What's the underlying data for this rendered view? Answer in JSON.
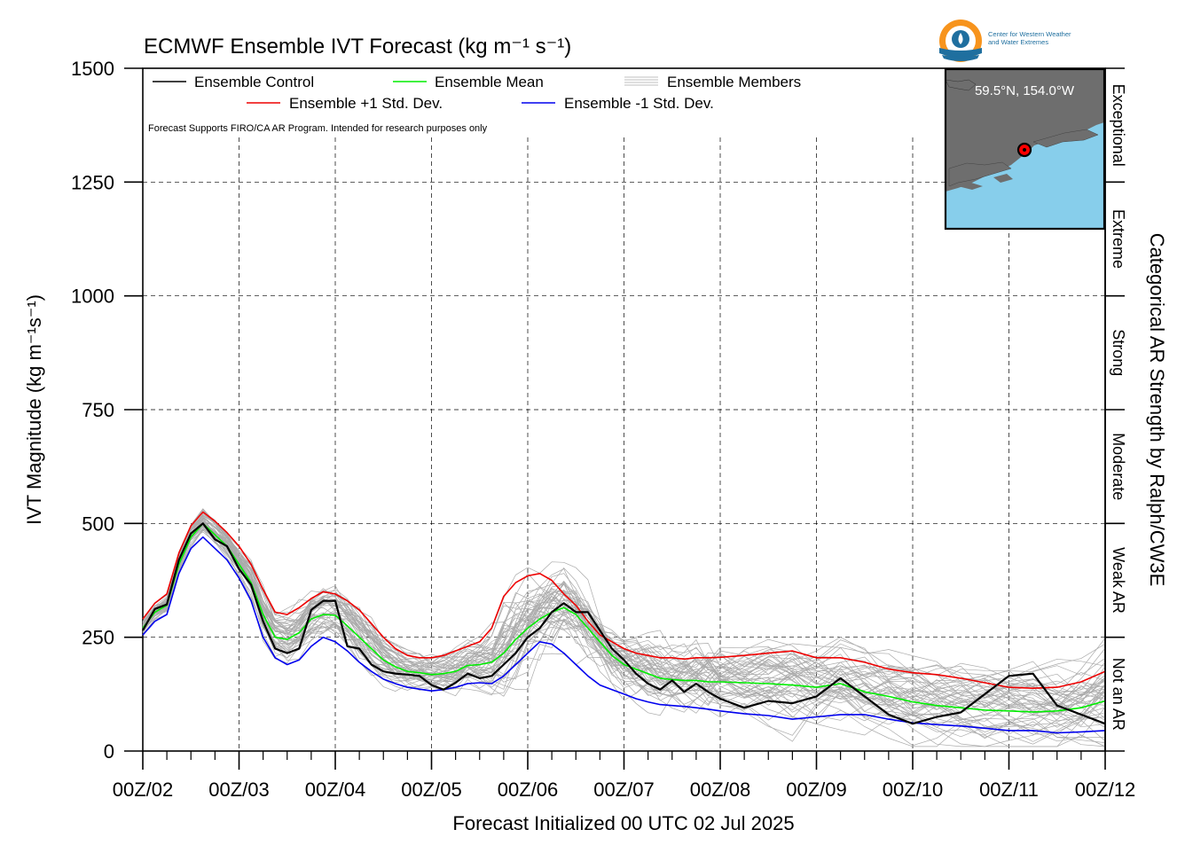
{
  "chart_data": {
    "type": "line",
    "title": "ECMWF Ensemble IVT Forecast (kg m⁻¹ s⁻¹)",
    "xlabel": "Forecast Initialized 00 UTC 02 Jul 2025",
    "ylabel": "IVT Magnitude (kg m⁻¹s⁻¹)",
    "right_label": "Categorical AR Strength by Ralph/CW3E",
    "note": "Forecast Supports FIRO/CA AR Program. Intended for research purposes only",
    "ylim": [
      0,
      1500
    ],
    "xlim": [
      0,
      240
    ],
    "x_units": "forecast hours",
    "y_ticks": [
      0,
      250,
      500,
      750,
      1000,
      1250,
      1500
    ],
    "x_ticks": [
      0,
      24,
      48,
      72,
      96,
      120,
      144,
      168,
      192,
      216,
      240
    ],
    "x_tick_labels": [
      "00Z/02",
      "00Z/03",
      "00Z/04",
      "00Z/05",
      "00Z/06",
      "00Z/07",
      "00Z/08",
      "00Z/09",
      "00Z/10",
      "00Z/11",
      "00Z/12"
    ],
    "grid": true,
    "legend_placement": "top-left",
    "categories": [
      {
        "label": "Not an AR",
        "range": [
          0,
          250
        ]
      },
      {
        "label": "Weak AR",
        "range": [
          250,
          500
        ]
      },
      {
        "label": "Moderate",
        "range": [
          500,
          750
        ]
      },
      {
        "label": "Strong",
        "range": [
          750,
          1000
        ]
      },
      {
        "label": "Extreme",
        "range": [
          1000,
          1250
        ]
      },
      {
        "label": "Exceptional",
        "range": [
          1250,
          1500
        ]
      }
    ],
    "x": [
      0,
      3,
      6,
      9,
      12,
      15,
      18,
      21,
      24,
      27,
      30,
      33,
      36,
      39,
      42,
      45,
      48,
      51,
      54,
      57,
      60,
      63,
      66,
      69,
      72,
      75,
      78,
      81,
      84,
      87,
      90,
      93,
      96,
      99,
      102,
      105,
      108,
      111,
      114,
      117,
      120,
      123,
      126,
      129,
      132,
      135,
      138,
      141,
      144,
      150,
      156,
      162,
      168,
      174,
      180,
      186,
      192,
      198,
      204,
      210,
      216,
      222,
      228,
      234,
      240
    ],
    "series": [
      {
        "name": "Ensemble Control",
        "color": "#000000",
        "values": [
          265,
          312,
          322,
          420,
          478,
          500,
          465,
          450,
          400,
          365,
          285,
          225,
          215,
          225,
          310,
          330,
          330,
          230,
          225,
          190,
          175,
          170,
          168,
          165,
          145,
          135,
          150,
          170,
          160,
          165,
          190,
          215,
          250,
          270,
          305,
          325,
          305,
          305,
          265,
          225,
          200,
          170,
          148,
          135,
          155,
          130,
          148,
          130,
          115,
          95,
          110,
          105,
          120,
          160,
          120,
          80,
          60,
          75,
          85,
          125,
          165,
          170,
          100,
          80,
          60
        ]
      },
      {
        "name": "Ensemble Mean",
        "color": "#00ee00",
        "values": [
          270,
          305,
          320,
          410,
          470,
          500,
          475,
          450,
          410,
          370,
          300,
          250,
          245,
          260,
          290,
          300,
          298,
          275,
          250,
          225,
          200,
          185,
          175,
          172,
          168,
          170,
          175,
          188,
          190,
          195,
          215,
          245,
          270,
          290,
          305,
          315,
          300,
          270,
          240,
          210,
          190,
          180,
          170,
          160,
          157,
          155,
          155,
          152,
          152,
          150,
          148,
          145,
          140,
          148,
          130,
          120,
          108,
          100,
          95,
          90,
          88,
          86,
          88,
          95,
          110
        ]
      },
      {
        "name": "Ensemble +1 Std. Dev.",
        "color": "#ee0000",
        "values": [
          290,
          325,
          345,
          435,
          495,
          525,
          505,
          480,
          450,
          410,
          355,
          305,
          300,
          315,
          335,
          350,
          345,
          330,
          310,
          280,
          250,
          225,
          210,
          205,
          205,
          210,
          220,
          230,
          240,
          270,
          340,
          370,
          385,
          390,
          375,
          345,
          320,
          285,
          255,
          240,
          225,
          215,
          210,
          205,
          205,
          202,
          205,
          205,
          206,
          210,
          215,
          220,
          205,
          205,
          195,
          180,
          172,
          168,
          160,
          150,
          140,
          138,
          140,
          152,
          175
        ]
      },
      {
        "name": "Ensemble -1 Std. Dev.",
        "color": "#0000ee",
        "values": [
          255,
          285,
          300,
          390,
          445,
          470,
          445,
          420,
          380,
          330,
          250,
          205,
          190,
          200,
          230,
          250,
          240,
          220,
          195,
          175,
          158,
          148,
          140,
          136,
          132,
          135,
          140,
          148,
          150,
          148,
          165,
          190,
          215,
          240,
          235,
          215,
          190,
          165,
          145,
          135,
          125,
          115,
          108,
          102,
          100,
          98,
          95,
          92,
          88,
          82,
          78,
          70,
          75,
          80,
          80,
          70,
          62,
          58,
          55,
          50,
          45,
          45,
          40,
          42,
          45
        ]
      }
    ],
    "ensemble_members": {
      "name": "Ensemble Members",
      "color": "#aaaaaa",
      "count": 50,
      "spread_visual_peak": [
        550,
        480,
        300
      ]
    }
  },
  "legend": {
    "control": "Ensemble Control",
    "mean": "Ensemble Mean",
    "members": "Ensemble Members",
    "plus_std": "Ensemble +1 Std. Dev.",
    "minus_std": "Ensemble -1 Std. Dev."
  },
  "inset": {
    "location": "59.5°N, 154.0°W",
    "land_color": "#707070",
    "ocean_color": "#87ceeb",
    "marker_color": "#ff0000"
  },
  "logo": {
    "text_line1": "Center for Western Weather",
    "text_line2": "and Water Extremes",
    "colors": [
      "#f7941d",
      "#1f6f9f"
    ]
  }
}
